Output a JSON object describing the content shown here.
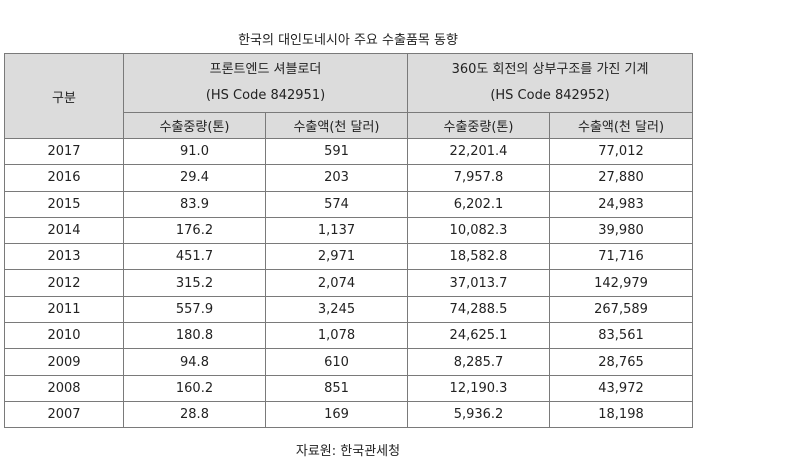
{
  "title": "한국의 대인도네시아 주요 수출품목 동향",
  "header": {
    "category": "구분",
    "group1_line1": "프론트엔드 셔블로더",
    "group1_line2": "(HS Code 842951)",
    "group2_line1": "360도 회전의 상부구조를 가진 기계",
    "group2_line2": "(HS Code 842952)",
    "sub": [
      "수출중량(톤)",
      "수출액(천 달러)",
      "수출중량(톤)",
      "수출액(천 달러)"
    ]
  },
  "rows": [
    [
      "2017",
      "91.0",
      "591",
      "22,201.4",
      "77,012"
    ],
    [
      "2016",
      "29.4",
      "203",
      "7,957.8",
      "27,880"
    ],
    [
      "2015",
      "83.9",
      "574",
      "6,202.1",
      "24,983"
    ],
    [
      "2014",
      "176.2",
      "1,137",
      "10,082.3",
      "39,980"
    ],
    [
      "2013",
      "451.7",
      "2,971",
      "18,582.8",
      "71,716"
    ],
    [
      "2012",
      "315.2",
      "2,074",
      "37,013.7",
      "142,979"
    ],
    [
      "2011",
      "557.9",
      "3,245",
      "74,288.5",
      "267,589"
    ],
    [
      "2010",
      "180.8",
      "1,078",
      "24,625.1",
      "83,561"
    ],
    [
      "2009",
      "94.8",
      "610",
      "8,285.7",
      "28,765"
    ],
    [
      "2008",
      "160.2",
      "851",
      "12,190.3",
      "43,972"
    ],
    [
      "2007",
      "28.8",
      "169",
      "5,936.2",
      "18,198"
    ]
  ],
  "source": "자료원: 한국관세청"
}
